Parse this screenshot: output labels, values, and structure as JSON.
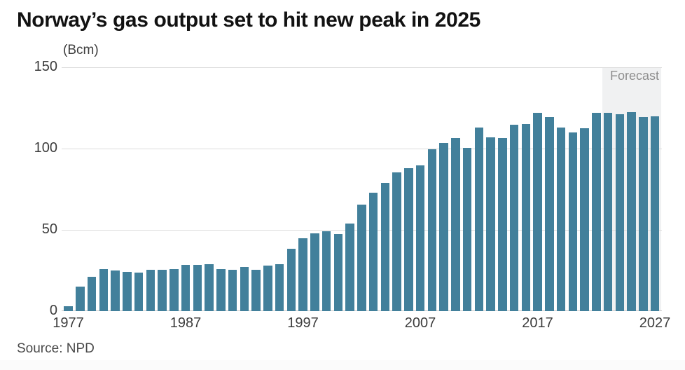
{
  "header": {
    "title": "Norway’s gas output set to hit new peak in 2025"
  },
  "chart": {
    "unit_label": "(Bcm)",
    "forecast_label": "Forecast",
    "source": "Source: NPD"
  },
  "chart_data": {
    "type": "bar",
    "title": "Norway’s gas output set to hit new peak in 2025",
    "xlabel": "",
    "ylabel": "(Bcm)",
    "x": [
      1977,
      1978,
      1979,
      1980,
      1981,
      1982,
      1983,
      1984,
      1985,
      1986,
      1987,
      1988,
      1989,
      1990,
      1991,
      1992,
      1993,
      1994,
      1995,
      1996,
      1997,
      1998,
      1999,
      2000,
      2001,
      2002,
      2003,
      2004,
      2005,
      2006,
      2007,
      2008,
      2009,
      2010,
      2011,
      2012,
      2013,
      2014,
      2015,
      2016,
      2017,
      2018,
      2019,
      2020,
      2021,
      2022,
      2023,
      2024,
      2025,
      2026,
      2027
    ],
    "values": [
      3,
      15,
      21,
      26,
      25,
      24,
      23.5,
      25.5,
      25.5,
      26,
      28.5,
      28.5,
      29,
      26,
      25.5,
      27,
      25.5,
      28,
      29,
      38.5,
      45,
      48,
      49,
      47.5,
      54,
      65.5,
      73,
      79,
      85.5,
      88,
      89.5,
      99.5,
      103.5,
      106.5,
      100.5,
      113,
      107,
      106.5,
      114.5,
      115,
      122,
      119.5,
      113,
      110,
      112.5,
      122,
      122,
      121,
      122.5,
      119.5,
      120
    ],
    "ylim": [
      0,
      150
    ],
    "y_ticks": [
      0,
      50,
      100,
      150
    ],
    "x_ticks": [
      1977,
      1987,
      1997,
      2007,
      2017,
      2027
    ],
    "grid": true,
    "legend": false,
    "bar_color": "#42809b",
    "forecast_start_year": 2023,
    "forecast_region_color": "#f0f1f2",
    "annotations": [
      "Forecast"
    ],
    "source": "Source: NPD"
  }
}
